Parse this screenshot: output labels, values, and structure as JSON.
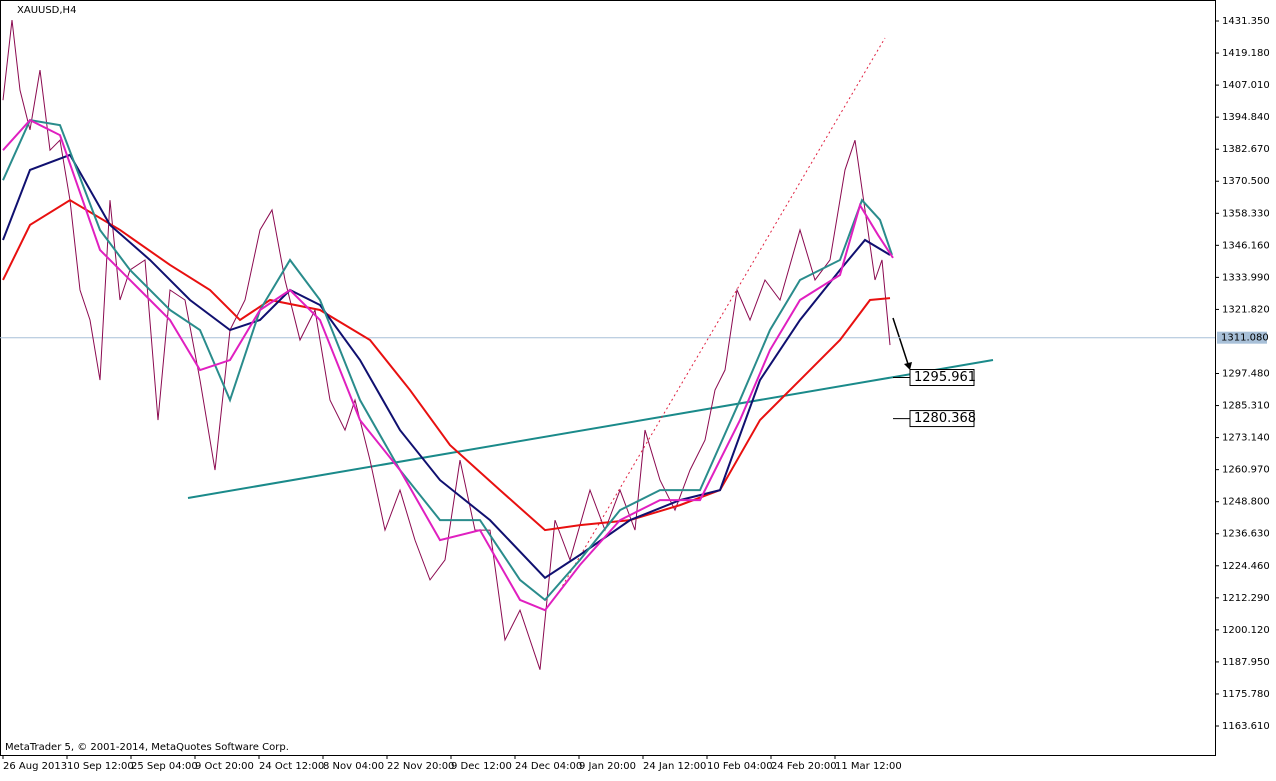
{
  "chart_data": {
    "type": "line",
    "title": "XAUUSD,H4",
    "footer": "MetaTrader 5, © 2001-2014, MetaQuotes Software Corp.",
    "xlim": [
      -3,
      1212
    ],
    "ylim": [
      1152.6,
      1439.33
    ],
    "xticks": [
      {
        "value": 0,
        "label": "26 Aug 2013"
      },
      {
        "value": 64,
        "label": "10 Sep 12:00"
      },
      {
        "value": 128,
        "label": "25 Sep 04:00"
      },
      {
        "value": 192,
        "label": "9 Oct 20:00"
      },
      {
        "value": 256,
        "label": "24 Oct 12:00"
      },
      {
        "value": 320,
        "label": "8 Nov 04:00"
      },
      {
        "value": 384,
        "label": "22 Nov 20:00"
      },
      {
        "value": 448,
        "label": "9 Dec 12:00"
      },
      {
        "value": 512,
        "label": "24 Dec 04:00"
      },
      {
        "value": 576,
        "label": "9 Jan 20:00"
      },
      {
        "value": 640,
        "label": "24 Jan 12:00"
      },
      {
        "value": 704,
        "label": "10 Feb 04:00"
      },
      {
        "value": 768,
        "label": "24 Feb 20:00"
      },
      {
        "value": 832,
        "label": "11 Mar 12:00"
      }
    ],
    "yticks": [
      {
        "value": 1431.35,
        "label": "1431.350"
      },
      {
        "value": 1419.18,
        "label": "1419.180"
      },
      {
        "value": 1407.01,
        "label": "1407.010"
      },
      {
        "value": 1394.84,
        "label": "1394.840"
      },
      {
        "value": 1382.67,
        "label": "1382.670"
      },
      {
        "value": 1370.5,
        "label": "1370.500"
      },
      {
        "value": 1358.33,
        "label": "1358.330"
      },
      {
        "value": 1346.16,
        "label": "1346.160"
      },
      {
        "value": 1333.99,
        "label": "1333.990"
      },
      {
        "value": 1321.82,
        "label": "1321.820"
      },
      {
        "value": 1297.48,
        "label": "1297.480"
      },
      {
        "value": 1285.31,
        "label": "1285.310"
      },
      {
        "value": 1273.14,
        "label": "1273.140"
      },
      {
        "value": 1260.97,
        "label": "1260.970"
      },
      {
        "value": 1248.8,
        "label": "1248.800"
      },
      {
        "value": 1236.63,
        "label": "1236.630"
      },
      {
        "value": 1224.46,
        "label": "1224.460"
      },
      {
        "value": 1212.29,
        "label": "1212.290"
      },
      {
        "value": 1200.12,
        "label": "1200.120"
      },
      {
        "value": 1187.95,
        "label": "1187.950"
      },
      {
        "value": 1175.78,
        "label": "1175.780"
      },
      {
        "value": 1163.61,
        "label": "1163.610"
      }
    ],
    "current_price": {
      "value": 1311.08,
      "label": "1311.080"
    },
    "series": [
      {
        "color": "#8b0a50",
        "width": 1,
        "x": [
          0,
          9,
          17,
          27,
          37,
          47,
          57,
          67,
          77,
          87,
          97,
          107,
          117,
          127,
          142,
          155,
          167,
          182,
          197,
          212,
          227,
          242,
          257,
          269,
          282,
          297,
          312,
          327,
          342,
          352,
          367,
          382,
          397,
          412,
          427,
          442,
          457,
          472,
          487,
          502,
          517,
          537,
          552,
          567,
          587,
          602,
          617,
          632,
          642,
          657,
          672,
          687,
          702,
          712,
          722,
          734,
          747,
          762,
          777,
          797,
          812,
          827,
          842,
          852,
          862,
          872,
          879,
          887
        ],
        "values": [
          1401.3,
          1431.7,
          1405.1,
          1390,
          1412.7,
          1382.3,
          1386.1,
          1363.3,
          1329.2,
          1317.8,
          1295,
          1363.3,
          1325.4,
          1336.8,
          1340.6,
          1279.8,
          1329.2,
          1325.4,
          1295,
          1260.8,
          1314,
          1325.4,
          1352,
          1359.6,
          1333,
          1310.2,
          1321.6,
          1287.4,
          1276,
          1287.4,
          1264.6,
          1238,
          1253.2,
          1234.2,
          1219.1,
          1226.7,
          1264.6,
          1238,
          1238,
          1196.3,
          1207.6,
          1185,
          1241.8,
          1226.7,
          1253.2,
          1238,
          1253.2,
          1238,
          1276,
          1257,
          1245.6,
          1260.8,
          1272.2,
          1291.2,
          1298.8,
          1329.2,
          1317.8,
          1333,
          1325.4,
          1352,
          1333,
          1340.6,
          1374.8,
          1386.1,
          1359.6,
          1333,
          1340.6,
          1308.3
        ]
      },
      {
        "color": "#e81010",
        "width": 2,
        "x": [
          0,
          27,
          67,
          117,
          167,
          207,
          237,
          267,
          317,
          367,
          407,
          447,
          497,
          542,
          577,
          627,
          677,
          717,
          757,
          797,
          837,
          867,
          887
        ],
        "values": [
          1333,
          1353.9,
          1363.3,
          1352,
          1338.7,
          1329.2,
          1317.8,
          1325.4,
          1321.6,
          1310.2,
          1291.2,
          1270.3,
          1253.2,
          1238,
          1239.9,
          1241.8,
          1247.5,
          1253.2,
          1279.8,
          1295,
          1310.2,
          1325.4,
          1326.1
        ]
      },
      {
        "color": "#101070",
        "width": 2,
        "x": [
          0,
          27,
          67,
          107,
          147,
          187,
          227,
          257,
          287,
          317,
          357,
          397,
          437,
          487,
          542,
          577,
          627,
          677,
          717,
          757,
          797,
          837,
          862,
          887
        ],
        "values": [
          1348.2,
          1374.8,
          1380.5,
          1353.9,
          1340.6,
          1325.4,
          1314,
          1317.8,
          1329.2,
          1323.5,
          1302.6,
          1276,
          1257,
          1241.8,
          1219.9,
          1228.6,
          1241.8,
          1249.4,
          1253.2,
          1295,
          1317.8,
          1336.8,
          1348.2,
          1342.5
        ]
      },
      {
        "color": "#2a8c8c",
        "width": 2,
        "x": [
          0,
          27,
          57,
          97,
          127,
          167,
          197,
          227,
          257,
          287,
          317,
          357,
          397,
          437,
          477,
          517,
          542,
          577,
          617,
          657,
          697,
          737,
          767,
          797,
          837,
          859,
          877,
          889
        ],
        "values": [
          1370.9,
          1393.7,
          1391.8,
          1352,
          1336.8,
          1321.6,
          1314,
          1287.4,
          1321.6,
          1340.6,
          1325.4,
          1287.4,
          1260.8,
          1241.8,
          1241.8,
          1219.1,
          1211.5,
          1226.7,
          1245.6,
          1253.2,
          1253.2,
          1287.4,
          1314,
          1333,
          1340.6,
          1363.3,
          1355.8,
          1342.5
        ]
      },
      {
        "color": "#e020c0",
        "width": 2,
        "x": [
          0,
          27,
          57,
          97,
          137,
          167,
          197,
          227,
          257,
          287,
          317,
          357,
          397,
          437,
          477,
          517,
          542,
          577,
          617,
          657,
          697,
          737,
          767,
          797,
          837,
          857,
          875,
          890
        ],
        "values": [
          1382.3,
          1393.7,
          1388,
          1344.4,
          1329.2,
          1317.8,
          1298.8,
          1302.6,
          1321.6,
          1329.2,
          1317.8,
          1279.8,
          1260.8,
          1234.2,
          1238,
          1211.5,
          1207.6,
          1224.8,
          1241.8,
          1249.4,
          1249.4,
          1279.8,
          1306.4,
          1325.4,
          1334.9,
          1361.4,
          1350.1,
          1341.4
        ]
      }
    ],
    "trendlines": [
      {
        "color": "#1a8a8a",
        "x": [
          185,
          990
        ],
        "values": [
          1250.2,
          1302.6
        ]
      },
      {
        "color": "#e02040",
        "dash": true,
        "x": [
          557,
          882
        ],
        "values": [
          1215.2,
          1424.9
        ]
      }
    ],
    "annotations": [
      {
        "value": 1295.961,
        "label": "1295.961"
      },
      {
        "value": 1280.368,
        "label": "1280.368"
      }
    ]
  }
}
